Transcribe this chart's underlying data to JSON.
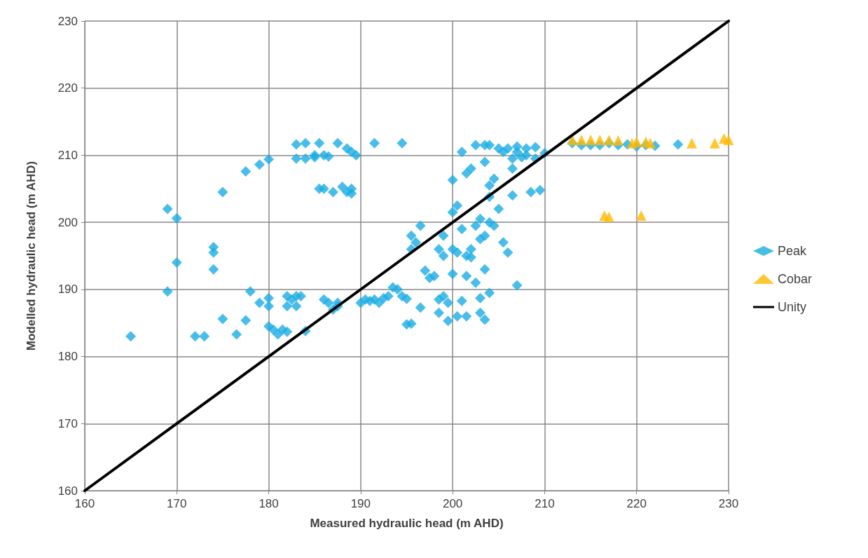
{
  "chart_data": {
    "type": "scatter",
    "xlabel": "Measured hydraulic head (m AHD)",
    "ylabel": "Modelled hydraulic head (m AHD)",
    "xlim": [
      160,
      230
    ],
    "xticks": [
      160,
      170,
      180,
      190,
      200,
      210,
      220,
      230
    ],
    "ylim": [
      160,
      230
    ],
    "yticks": [
      160,
      170,
      180,
      190,
      200,
      210,
      220,
      230
    ],
    "grid": true,
    "legend": "right",
    "series": [
      {
        "name": "Peak",
        "marker": "diamond",
        "color": "#1cade4",
        "x": [
          165,
          169,
          169,
          170,
          170,
          172,
          173,
          174,
          174,
          174,
          175,
          175,
          176.5,
          177.5,
          177.5,
          178,
          179,
          179,
          180,
          180,
          180,
          180,
          180.5,
          181,
          181.5,
          182,
          182,
          182,
          182.5,
          183,
          183,
          183.5,
          183,
          183,
          184,
          184,
          184,
          185,
          185,
          185.5,
          185.5,
          186,
          186,
          186,
          186.5,
          186.5,
          187,
          187,
          187.5,
          187.5,
          187.5,
          188,
          188.5,
          188.5,
          189,
          189,
          189,
          189.5,
          190,
          190.5,
          191,
          191.5,
          191.5,
          192,
          192.5,
          193,
          193.5,
          194,
          194.5,
          194.5,
          195,
          195,
          195.5,
          195.5,
          195.5,
          196,
          196.5,
          196.5,
          197,
          197.5,
          198,
          198.5,
          198.5,
          198.5,
          199,
          199,
          199,
          199.5,
          199.5,
          200,
          200,
          200,
          200,
          200.5,
          200.5,
          200.5,
          201,
          201,
          201,
          201.5,
          201.5,
          201.5,
          201.5,
          202,
          202,
          202,
          202.5,
          202.5,
          202.5,
          203,
          203,
          203,
          203,
          203.5,
          203.5,
          203.5,
          203.5,
          203.5,
          204,
          204,
          204,
          204,
          204,
          204.5,
          204.5,
          205,
          205,
          205.5,
          205.5,
          206,
          206,
          206.5,
          206.5,
          206.5,
          207,
          207,
          207,
          207.5,
          208,
          208,
          208.5,
          209,
          209,
          209.5,
          210,
          213,
          214,
          215,
          216,
          217,
          218,
          219,
          220,
          221,
          222,
          224.5
        ],
        "values": [
          183,
          202,
          189.7,
          200.6,
          194,
          183,
          183,
          193,
          196.3,
          195.5,
          185.6,
          204.5,
          183.3,
          185.4,
          207.6,
          189.7,
          208.6,
          188,
          209.4,
          187.5,
          188.7,
          184.5,
          184,
          183.3,
          184,
          183.7,
          187.5,
          189,
          188.5,
          189,
          187.5,
          189,
          209.5,
          211.6,
          211.8,
          209.5,
          183.8,
          209.7,
          210,
          211.8,
          205,
          205,
          210,
          188.5,
          188,
          209.8,
          204.5,
          187,
          187.5,
          188,
          211.8,
          205.3,
          204.5,
          211,
          205,
          204.3,
          210.5,
          210,
          188,
          188.5,
          188.3,
          211.8,
          188.5,
          188,
          188.7,
          189,
          190.3,
          190,
          211.8,
          189,
          188.6,
          184.8,
          184.9,
          196,
          198,
          197,
          187.3,
          199.5,
          192.8,
          191.7,
          192,
          188.5,
          186.5,
          196,
          198,
          195,
          189,
          185.3,
          188,
          192.3,
          206.3,
          196,
          201.5,
          202.5,
          195.5,
          186,
          188.3,
          199,
          210.5,
          195,
          192,
          186,
          207.3,
          196,
          208,
          194.8,
          191,
          199.5,
          211.5,
          188.7,
          197.5,
          200.5,
          186.5,
          209,
          211.5,
          193,
          185.5,
          198,
          189.5,
          203.8,
          205.5,
          200,
          211.5,
          199.5,
          206.5,
          202,
          211,
          197,
          210.5,
          195.5,
          211,
          204,
          208,
          209.5,
          210.5,
          190.6,
          211.3,
          209.7,
          211,
          210,
          204.5,
          211.2,
          209.5,
          204.8,
          210.3,
          211.8,
          211.5,
          211.5,
          211.5,
          211.8,
          211.5,
          211.6,
          211.3,
          211.5,
          211.4,
          211.6
        ]
      },
      {
        "name": "Cobar",
        "marker": "triangle",
        "color": "#ffb900",
        "x": [
          213,
          214,
          215,
          216,
          217,
          218,
          219.5,
          220,
          221,
          221.5,
          216.5,
          217,
          220.5,
          226,
          228.5,
          229.5,
          230
        ],
        "values": [
          212.3,
          212.3,
          212.3,
          212.3,
          212.3,
          212.2,
          211.8,
          212,
          212,
          211.8,
          201,
          200.8,
          201,
          211.8,
          211.8,
          212.5,
          212.3
        ]
      },
      {
        "name": "Unity",
        "type": "line",
        "marker": "none",
        "line_style": "solid",
        "color": "#000000",
        "x": [
          160,
          230
        ],
        "values": [
          160,
          230
        ]
      }
    ]
  }
}
